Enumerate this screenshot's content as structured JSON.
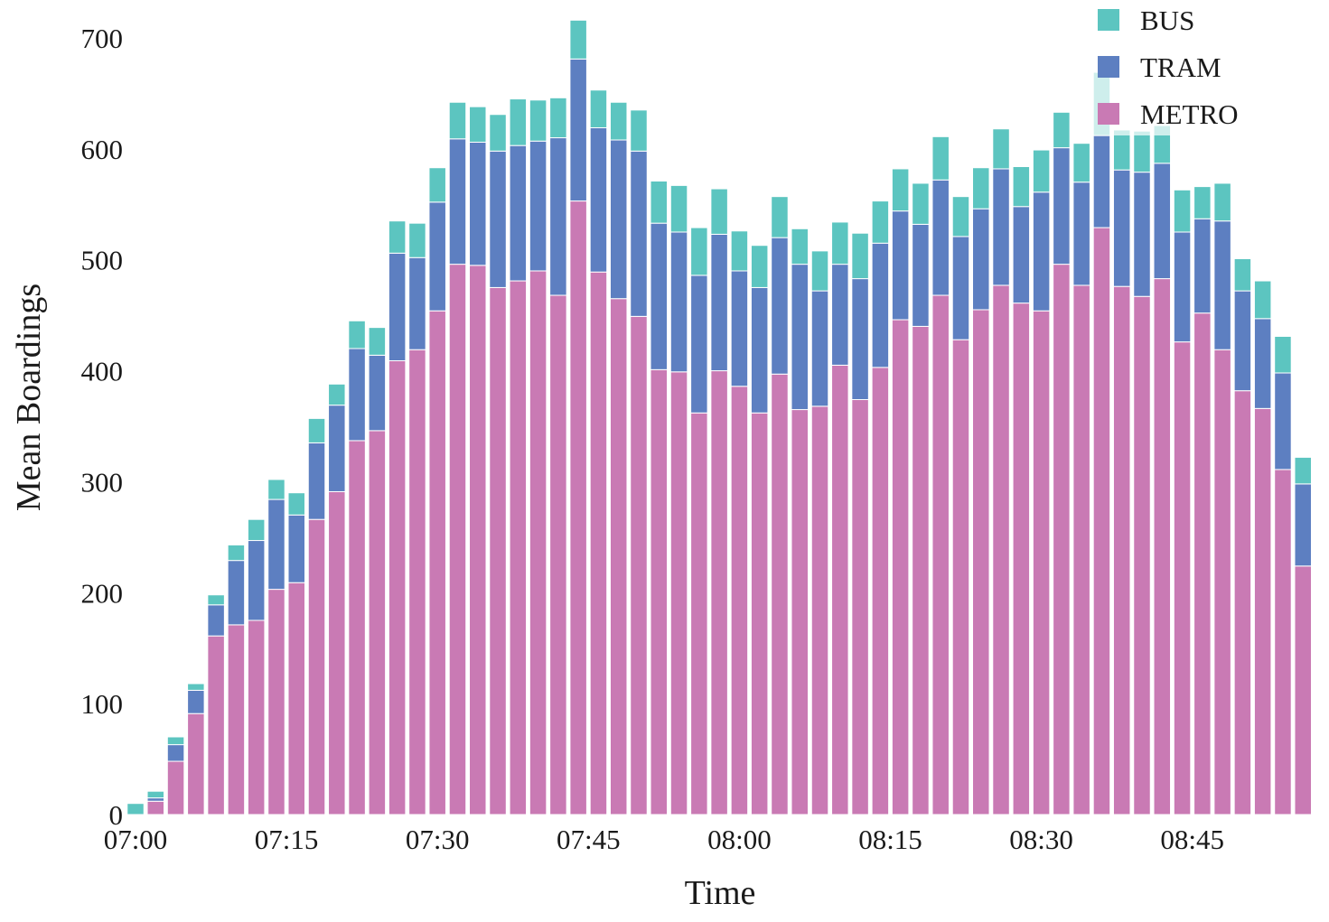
{
  "chart_data": {
    "type": "bar",
    "stacked": true,
    "xlabel": "Time",
    "ylabel": "Mean Boardings",
    "ylim": [
      0,
      720
    ],
    "yticks": [
      0,
      100,
      200,
      300,
      400,
      500,
      600,
      700
    ],
    "xtick_labels": [
      "07:00",
      "07:15",
      "07:30",
      "07:45",
      "08:00",
      "08:15",
      "08:30",
      "08:45"
    ],
    "xtick_minutes": [
      0,
      15,
      30,
      45,
      60,
      75,
      90,
      105
    ],
    "x_minutes": [
      0,
      2,
      4,
      6,
      8,
      10,
      12,
      14,
      16,
      18,
      20,
      22,
      24,
      26,
      28,
      30,
      32,
      34,
      36,
      38,
      40,
      42,
      44,
      46,
      48,
      50,
      52,
      54,
      56,
      58,
      60,
      62,
      64,
      66,
      68,
      70,
      72,
      74,
      76,
      78,
      80,
      82,
      84,
      86,
      88,
      90,
      92,
      94,
      96,
      98,
      100,
      102,
      104,
      106,
      108,
      110,
      112,
      114,
      116
    ],
    "grid": false,
    "legend_position": "top-right",
    "series": [
      {
        "name": "METRO",
        "color": "#C97AB4",
        "values": [
          0,
          12,
          48,
          91,
          161,
          171,
          175,
          203,
          209,
          266,
          291,
          337,
          346,
          409,
          419,
          454,
          496,
          495,
          475,
          481,
          490,
          468,
          553,
          489,
          465,
          449,
          401,
          399,
          362,
          400,
          386,
          362,
          397,
          365,
          368,
          405,
          374,
          403,
          446,
          440,
          468,
          428,
          455,
          477,
          461,
          454,
          496,
          477,
          529,
          476,
          467,
          483,
          426,
          452,
          419,
          382,
          366,
          311,
          224
        ]
      },
      {
        "name": "TRAM",
        "color": "#5D7FC1",
        "values": [
          0,
          3,
          15,
          21,
          28,
          58,
          72,
          81,
          61,
          69,
          78,
          83,
          68,
          97,
          83,
          98,
          113,
          111,
          123,
          122,
          117,
          142,
          128,
          130,
          143,
          149,
          132,
          126,
          124,
          123,
          104,
          113,
          123,
          131,
          104,
          91,
          109,
          112,
          98,
          92,
          104,
          93,
          91,
          105,
          87,
          107,
          105,
          93,
          83,
          105,
          112,
          104,
          99,
          85,
          116,
          90,
          81,
          87,
          74
        ]
      },
      {
        "name": "BUS",
        "color": "#5CC5C0",
        "values": [
          10,
          6,
          7,
          6,
          9,
          14,
          19,
          18,
          20,
          22,
          19,
          25,
          25,
          29,
          31,
          31,
          33,
          32,
          33,
          42,
          37,
          36,
          35,
          34,
          34,
          37,
          38,
          42,
          43,
          41,
          36,
          38,
          37,
          32,
          36,
          38,
          41,
          38,
          38,
          37,
          39,
          36,
          37,
          36,
          36,
          38,
          32,
          35,
          57,
          36,
          37,
          34,
          38,
          29,
          34,
          29,
          34,
          33,
          24
        ]
      }
    ]
  }
}
